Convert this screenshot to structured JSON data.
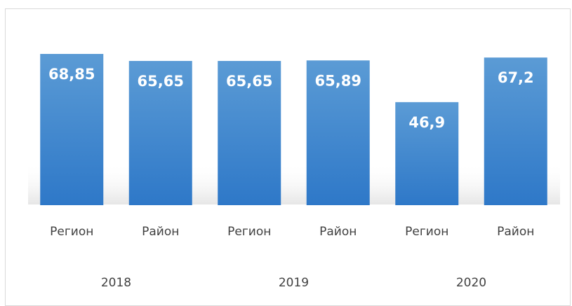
{
  "chart_data": {
    "type": "bar",
    "categories": [
      "Регион",
      "Район",
      "Регион",
      "Район",
      "Регион",
      "Район"
    ],
    "groups": [
      "2018",
      "2019",
      "2020"
    ],
    "values": [
      68.85,
      65.65,
      65.65,
      65.89,
      46.9,
      67.2
    ],
    "value_labels": [
      "68,85",
      "65,65",
      "65,65",
      "65,89",
      "46,9",
      "67,2"
    ],
    "color": "#3b86cf"
  }
}
